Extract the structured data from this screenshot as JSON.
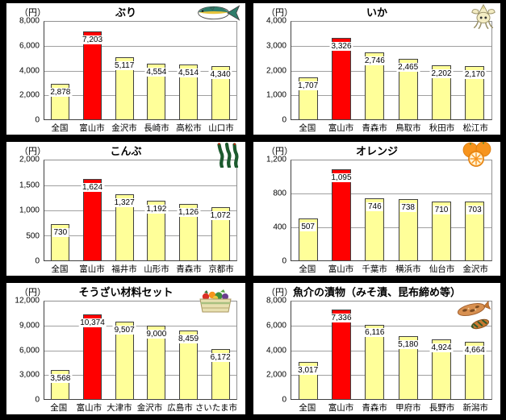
{
  "page": {
    "background": "#000000",
    "panel_background": "#FFFFFF"
  },
  "colors": {
    "bar": "#FFFF99",
    "highlight": "#FF0000",
    "bar_border": "#404040",
    "grid": "#A0A0A0"
  },
  "chart_data": [
    {
      "type": "bar",
      "title": "ぶり",
      "unit": "（円）",
      "icon": "yellowtail-fish-icon",
      "categories": [
        "全国",
        "富山市",
        "金沢市",
        "長崎市",
        "高松市",
        "山口市"
      ],
      "values": [
        2878,
        7203,
        5117,
        4554,
        4514,
        4340
      ],
      "value_labels": [
        "2,878",
        "7,203",
        "5,117",
        "4,554",
        "4,514",
        "4,340"
      ],
      "ylim": [
        0,
        8000
      ],
      "yticks": [
        "8,000",
        "6,000",
        "4,000",
        "2,000",
        "0"
      ],
      "highlight_index": 1,
      "highlight_category": "富山市",
      "grid": true,
      "legend": "none"
    },
    {
      "type": "bar",
      "title": "いか",
      "unit": "（円）",
      "icon": "squid-icon",
      "categories": [
        "全国",
        "富山市",
        "青森市",
        "鳥取市",
        "秋田市",
        "松江市"
      ],
      "values": [
        1707,
        3326,
        2746,
        2465,
        2202,
        2170
      ],
      "value_labels": [
        "1,707",
        "3,326",
        "2,746",
        "2,465",
        "2,202",
        "2,170"
      ],
      "ylim": [
        0,
        4000
      ],
      "yticks": [
        "4,000",
        "3,000",
        "2,000",
        "1,000",
        "0"
      ],
      "highlight_index": 1,
      "highlight_category": "富山市",
      "grid": true,
      "legend": "none"
    },
    {
      "type": "bar",
      "title": "こんぶ",
      "unit": "（円）",
      "icon": "seaweed-icon",
      "categories": [
        "全国",
        "富山市",
        "福井市",
        "山形市",
        "青森市",
        "京都市"
      ],
      "values": [
        730,
        1624,
        1327,
        1192,
        1126,
        1072
      ],
      "value_labels": [
        "730",
        "1,624",
        "1,327",
        "1,192",
        "1,126",
        "1,072"
      ],
      "ylim": [
        0,
        2000
      ],
      "yticks": [
        "2,000",
        "1,500",
        "1,000",
        "500",
        "0"
      ],
      "highlight_index": 1,
      "highlight_category": "富山市",
      "grid": true,
      "legend": "none"
    },
    {
      "type": "bar",
      "title": "オレンジ",
      "unit": "（円）",
      "icon": "oranges-icon",
      "categories": [
        "全国",
        "富山市",
        "千葉市",
        "横浜市",
        "仙台市",
        "金沢市"
      ],
      "values": [
        507,
        1095,
        746,
        738,
        710,
        703
      ],
      "value_labels": [
        "507",
        "1,095",
        "746",
        "738",
        "710",
        "703"
      ],
      "ylim": [
        0,
        1200
      ],
      "yticks": [
        "1,200",
        "800",
        "400",
        "0"
      ],
      "highlight_index": 1,
      "highlight_category": "富山市",
      "grid": true,
      "legend": "none"
    },
    {
      "type": "bar",
      "title": "そうざい材料セット",
      "unit": "（円）",
      "icon": "vegetable-basket-icon",
      "categories": [
        "全国",
        "富山市",
        "大津市",
        "金沢市",
        "広島市",
        "さいたま市"
      ],
      "values": [
        3568,
        10374,
        9507,
        9000,
        8459,
        6172
      ],
      "value_labels": [
        "3,568",
        "10,374",
        "9,507",
        "9,000",
        "8,459",
        "6,172"
      ],
      "ylim": [
        0,
        12000
      ],
      "yticks": [
        "12,000",
        "9,000",
        "6,000",
        "3,000",
        "0"
      ],
      "highlight_index": 1,
      "highlight_category": "富山市",
      "grid": true,
      "legend": "none"
    },
    {
      "type": "bar",
      "title": "魚介の漬物（みそ漬、昆布締め等）",
      "unit": "（円）",
      "icon": "pickled-fish-icon",
      "categories": [
        "全国",
        "富山市",
        "青森市",
        "甲府市",
        "長野市",
        "新潟市"
      ],
      "values": [
        3017,
        7336,
        6116,
        5180,
        4924,
        4664
      ],
      "value_labels": [
        "3,017",
        "7,336",
        "6,116",
        "5,180",
        "4,924",
        "4,664"
      ],
      "ylim": [
        0,
        8000
      ],
      "yticks": [
        "8,000",
        "6,000",
        "4,000",
        "2,000",
        "0"
      ],
      "highlight_index": 1,
      "highlight_category": "富山市",
      "grid": true,
      "legend": "none"
    }
  ]
}
